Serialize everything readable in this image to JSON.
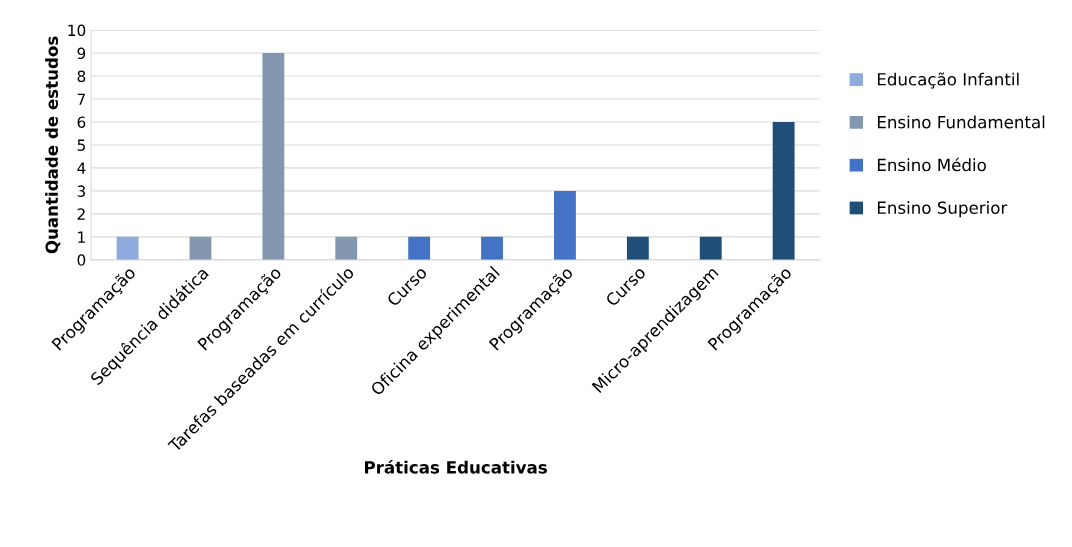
{
  "chart_data": {
    "type": "bar",
    "xlabel": "Práticas Educativas",
    "ylabel": "Quantidade de estudos",
    "categories": [
      "Programação",
      "Sequência didática",
      "Programação",
      "Tarefas baseadas em currículo",
      "Curso",
      "Oficina experimental",
      "Programação",
      "Curso",
      "Micro-aprendizagem",
      "Programação"
    ],
    "series": [
      {
        "name": "Educação Infantil",
        "color": "#8faadc",
        "values": [
          1,
          null,
          null,
          null,
          null,
          null,
          null,
          null,
          null,
          null
        ]
      },
      {
        "name": "Ensino Fundamental",
        "color": "#8497b0",
        "values": [
          null,
          1,
          9,
          1,
          null,
          null,
          null,
          null,
          null,
          null
        ]
      },
      {
        "name": "Ensino Médio",
        "color": "#4472c4",
        "values": [
          null,
          null,
          null,
          null,
          1,
          1,
          3,
          null,
          null,
          null
        ]
      },
      {
        "name": "Ensino Superior",
        "color": "#1f4e79",
        "values": [
          null,
          null,
          null,
          null,
          null,
          null,
          null,
          1,
          1,
          6
        ]
      }
    ],
    "ylim": [
      0,
      10
    ],
    "yticks": [
      0,
      1,
      2,
      3,
      4,
      5,
      6,
      7,
      8,
      9,
      10
    ],
    "grid": "y",
    "legend": "right"
  }
}
